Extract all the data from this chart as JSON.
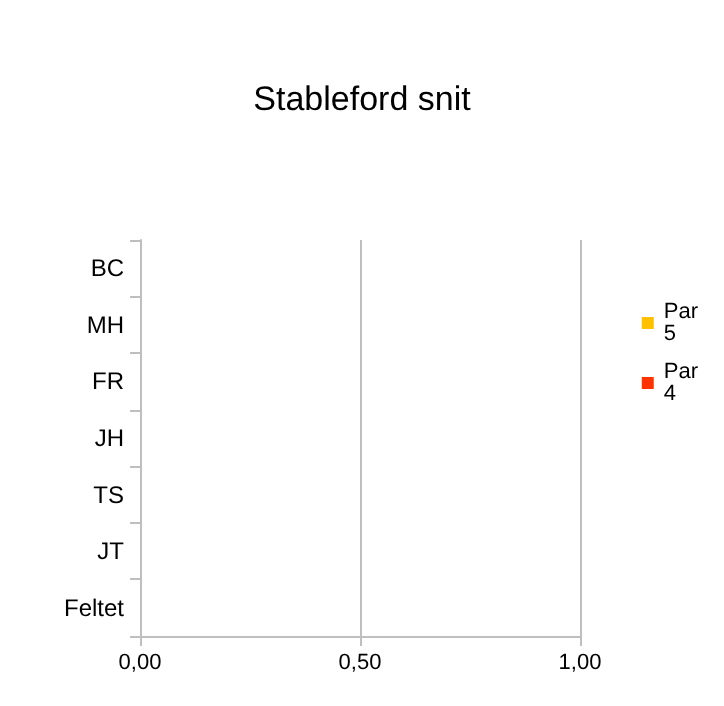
{
  "chart_data": {
    "type": "bar",
    "title": "Stableford snit",
    "orientation": "horizontal",
    "categories": [
      "BC",
      "MH",
      "FR",
      "JH",
      "TS",
      "JT",
      "Feltet"
    ],
    "series": [
      {
        "name": "Par 5",
        "color": "#ffc000",
        "values": [
          0,
          0,
          0,
          0,
          0,
          0,
          0
        ]
      },
      {
        "name": "Par 4",
        "color": "#ff3300",
        "values": [
          0,
          0,
          0,
          0,
          0,
          0,
          0
        ]
      }
    ],
    "xlim": [
      0,
      1
    ],
    "xticks": [
      {
        "value": 0,
        "label": "0,00"
      },
      {
        "value": 0.5,
        "label": "0,50"
      },
      {
        "value": 1,
        "label": "1,00"
      }
    ],
    "grid": "x",
    "legend": "right"
  }
}
